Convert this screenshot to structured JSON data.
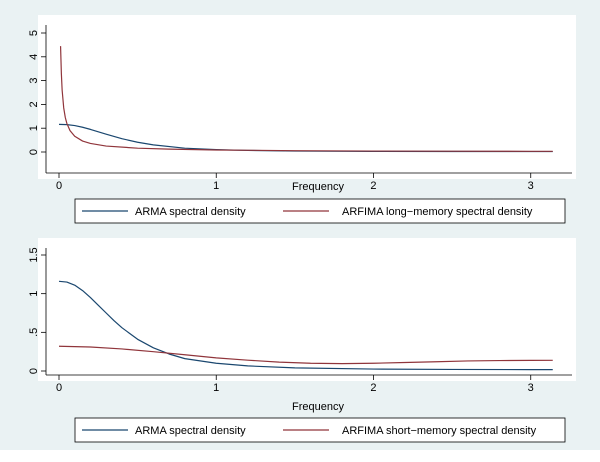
{
  "colors": {
    "background": "#eaf2f3",
    "plot_area": "#ffffff",
    "arma": "#1a476f",
    "arfima": "#90353b",
    "axis": "#000000"
  },
  "chart_data": [
    {
      "type": "line",
      "title": "",
      "xlabel": "Frequency",
      "ylabel": "",
      "xlim": [
        0,
        3.14159
      ],
      "ylim": [
        0,
        5
      ],
      "x_ticks": [
        "0",
        "1",
        "2",
        "3"
      ],
      "y_ticks": [
        "0",
        "1",
        "2",
        "3",
        "4",
        "5"
      ],
      "grid": false,
      "legend_position": "bottom",
      "series": [
        {
          "name": "ARMA  spectral density",
          "color": "#1a476f",
          "x": [
            0,
            0.05,
            0.1,
            0.15,
            0.2,
            0.3,
            0.4,
            0.5,
            0.6,
            0.8,
            1.0,
            1.2,
            1.5,
            2.0,
            2.5,
            3.0,
            3.14
          ],
          "y": [
            1.16,
            1.15,
            1.11,
            1.04,
            0.95,
            0.75,
            0.56,
            0.41,
            0.3,
            0.16,
            0.1,
            0.066,
            0.04,
            0.025,
            0.02,
            0.018,
            0.018
          ]
        },
        {
          "name": "ARFIMA long−memory spectral density",
          "color": "#90353b",
          "x": [
            0.01,
            0.015,
            0.02,
            0.03,
            0.04,
            0.05,
            0.07,
            0.1,
            0.15,
            0.2,
            0.3,
            0.5,
            0.7,
            1.0,
            1.5,
            2.0,
            2.5,
            3.0,
            3.14
          ],
          "y": [
            4.45,
            3.3,
            2.6,
            1.85,
            1.45,
            1.2,
            0.9,
            0.66,
            0.46,
            0.36,
            0.25,
            0.16,
            0.12,
            0.085,
            0.055,
            0.04,
            0.033,
            0.03,
            0.03
          ]
        }
      ]
    },
    {
      "type": "line",
      "title": "",
      "xlabel": "Frequency",
      "ylabel": "",
      "xlim": [
        0,
        3.14159
      ],
      "ylim": [
        0,
        1.5
      ],
      "x_ticks": [
        "0",
        "1",
        "2",
        "3"
      ],
      "y_ticks": [
        "0",
        ".5",
        "1",
        "1.5"
      ],
      "grid": false,
      "legend_position": "bottom",
      "series": [
        {
          "name": "ARMA  spectral density",
          "color": "#1a476f",
          "x": [
            0,
            0.05,
            0.1,
            0.15,
            0.2,
            0.25,
            0.3,
            0.35,
            0.4,
            0.5,
            0.6,
            0.7,
            0.8,
            1.0,
            1.2,
            1.5,
            2.0,
            2.5,
            3.0,
            3.14
          ],
          "y": [
            1.16,
            1.15,
            1.11,
            1.04,
            0.95,
            0.85,
            0.75,
            0.65,
            0.56,
            0.41,
            0.3,
            0.22,
            0.16,
            0.1,
            0.066,
            0.04,
            0.025,
            0.02,
            0.018,
            0.018
          ]
        },
        {
          "name": "ARFIMA short−memory spectral density",
          "color": "#90353b",
          "x": [
            0,
            0.2,
            0.4,
            0.6,
            0.8,
            1.0,
            1.2,
            1.4,
            1.6,
            1.8,
            2.0,
            2.2,
            2.4,
            2.6,
            2.8,
            3.0,
            3.14
          ],
          "y": [
            0.32,
            0.31,
            0.285,
            0.25,
            0.21,
            0.17,
            0.14,
            0.115,
            0.1,
            0.095,
            0.1,
            0.11,
            0.12,
            0.13,
            0.135,
            0.137,
            0.138
          ]
        }
      ]
    }
  ]
}
